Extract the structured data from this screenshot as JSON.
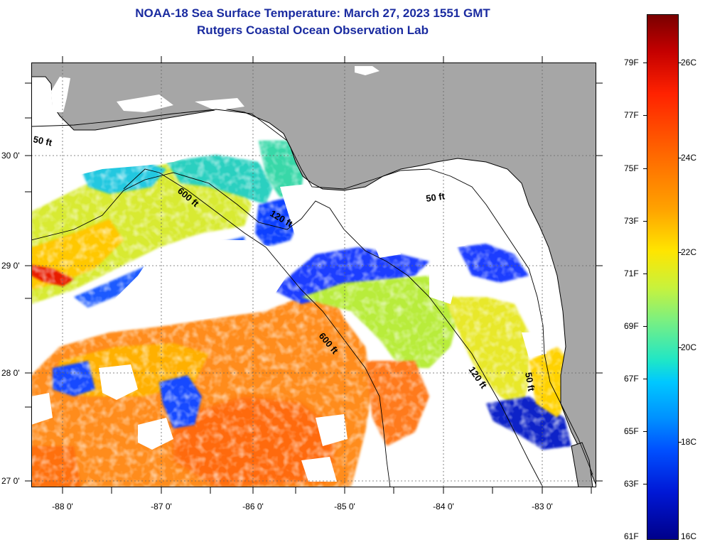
{
  "header": {
    "title": "NOAA-18 Sea Surface Temperature:  March 27, 2023 1551 GMT",
    "subtitle": "Rutgers Coastal Ocean Observation Lab"
  },
  "map": {
    "lat_labels": [
      "30 0'",
      "29 0'",
      "28 0'",
      "27 0'"
    ],
    "lon_labels": [
      "-88 0'",
      "-87 0'",
      "-86 0'",
      "-85 0'",
      "-84 0'",
      "-83 0'"
    ],
    "contour_labels": [
      "50 ft",
      "600 ft",
      "120 ft",
      "50 ft",
      "600 ft",
      "120 ft",
      "50 ft"
    ],
    "land_color": "#a6a6a6",
    "cloud_color": "#ffffff",
    "lat_range": [
      26.97,
      30.87
    ],
    "lon_range": [
      -88.33,
      -82.57
    ]
  },
  "colorbar": {
    "fahrenheit_labels": [
      "79F",
      "77F",
      "75F",
      "73F",
      "71F",
      "69F",
      "67F",
      "65F",
      "63F",
      "61F"
    ],
    "celsius_labels": [
      "26C",
      "24C",
      "22C",
      "20C",
      "18C",
      "16C"
    ],
    "range_f": [
      61,
      80.6
    ],
    "range_c": [
      16,
      27
    ]
  }
}
